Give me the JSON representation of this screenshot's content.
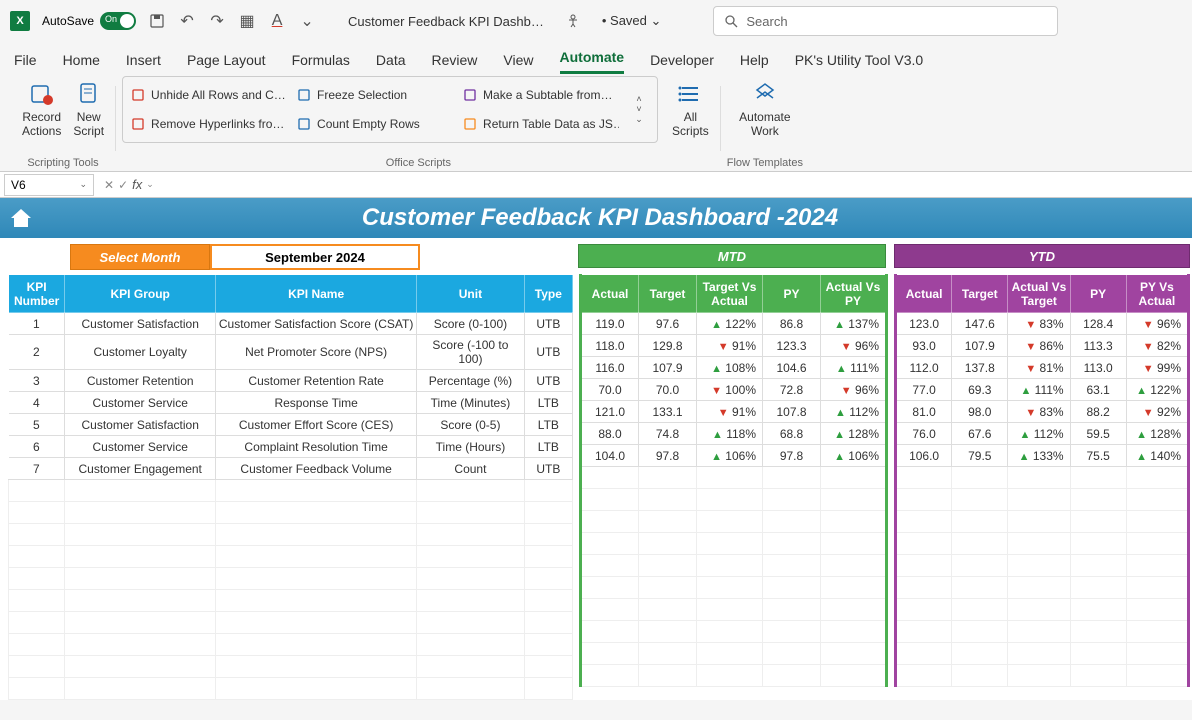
{
  "titlebar": {
    "autosave_label": "AutoSave",
    "toggle_text": "On",
    "doc_title": "Customer Feedback KPI Dashb…",
    "saved_text": "• Saved ⌄",
    "search_placeholder": "Search"
  },
  "tabs": [
    "File",
    "Home",
    "Insert",
    "Page Layout",
    "Formulas",
    "Data",
    "Review",
    "View",
    "Automate",
    "Developer",
    "Help",
    "PK's Utility Tool V3.0"
  ],
  "active_tab": "Automate",
  "ribbon": {
    "record_actions": "Record\nActions",
    "new_script": "New\nScript",
    "group1_label": "Scripting Tools",
    "scripts": [
      "Unhide All Rows and C…",
      "Freeze Selection",
      "Make a Subtable from…",
      "Remove Hyperlinks fro…",
      "Count Empty Rows",
      "Return Table Data as JS…"
    ],
    "all_scripts": "All\nScripts",
    "group2_label": "Office Scripts",
    "automate_work": "Automate\nWork",
    "group3_label": "Flow Templates"
  },
  "formula": {
    "namebox": "V6"
  },
  "dashboard": {
    "title": "Customer Feedback KPI Dashboard -2024",
    "select_month_label": "Select Month",
    "select_month_value": "September 2024",
    "mtd_label": "MTD",
    "ytd_label": "YTD"
  },
  "left_headers": [
    "KPI Number",
    "KPI Group",
    "KPI Name",
    "Unit",
    "Type"
  ],
  "mtd_headers": [
    "Actual",
    "Target",
    "Target Vs Actual",
    "PY",
    "Actual Vs PY"
  ],
  "ytd_headers": [
    "Actual",
    "Target",
    "Actual Vs Target",
    "PY",
    "PY Vs Actual"
  ],
  "rows": [
    {
      "n": "1",
      "group": "Customer Satisfaction",
      "name": "Customer Satisfaction Score (CSAT)",
      "unit": "Score (0-100)",
      "type": "UTB",
      "mtd": {
        "a": "119.0",
        "t": "97.6",
        "tva": "122%",
        "tva_dir": "up",
        "py": "86.8",
        "avp": "137%",
        "avp_dir": "up"
      },
      "ytd": {
        "a": "123.0",
        "t": "147.6",
        "avt": "83%",
        "avt_dir": "down",
        "py": "128.4",
        "pva": "96%",
        "pva_dir": "down"
      }
    },
    {
      "n": "2",
      "group": "Customer Loyalty",
      "name": "Net Promoter Score (NPS)",
      "unit": "Score (-100 to 100)",
      "type": "UTB",
      "mtd": {
        "a": "118.0",
        "t": "129.8",
        "tva": "91%",
        "tva_dir": "down",
        "py": "123.3",
        "avp": "96%",
        "avp_dir": "down"
      },
      "ytd": {
        "a": "93.0",
        "t": "107.9",
        "avt": "86%",
        "avt_dir": "down",
        "py": "113.3",
        "pva": "82%",
        "pva_dir": "down"
      }
    },
    {
      "n": "3",
      "group": "Customer Retention",
      "name": "Customer Retention Rate",
      "unit": "Percentage (%)",
      "type": "UTB",
      "mtd": {
        "a": "116.0",
        "t": "107.9",
        "tva": "108%",
        "tva_dir": "up",
        "py": "104.6",
        "avp": "111%",
        "avp_dir": "up"
      },
      "ytd": {
        "a": "112.0",
        "t": "137.8",
        "avt": "81%",
        "avt_dir": "down",
        "py": "113.0",
        "pva": "99%",
        "pva_dir": "down"
      }
    },
    {
      "n": "4",
      "group": "Customer Service",
      "name": "Response Time",
      "unit": "Time (Minutes)",
      "type": "LTB",
      "mtd": {
        "a": "70.0",
        "t": "70.0",
        "tva": "100%",
        "tva_dir": "down",
        "py": "72.8",
        "avp": "96%",
        "avp_dir": "down"
      },
      "ytd": {
        "a": "77.0",
        "t": "69.3",
        "avt": "111%",
        "avt_dir": "up",
        "py": "63.1",
        "pva": "122%",
        "pva_dir": "up"
      }
    },
    {
      "n": "5",
      "group": "Customer Satisfaction",
      "name": "Customer Effort Score (CES)",
      "unit": "Score (0-5)",
      "type": "LTB",
      "mtd": {
        "a": "121.0",
        "t": "133.1",
        "tva": "91%",
        "tva_dir": "down",
        "py": "107.8",
        "avp": "112%",
        "avp_dir": "up"
      },
      "ytd": {
        "a": "81.0",
        "t": "98.0",
        "avt": "83%",
        "avt_dir": "down",
        "py": "88.2",
        "pva": "92%",
        "pva_dir": "down"
      }
    },
    {
      "n": "6",
      "group": "Customer Service",
      "name": "Complaint Resolution Time",
      "unit": "Time (Hours)",
      "type": "LTB",
      "mtd": {
        "a": "88.0",
        "t": "74.8",
        "tva": "118%",
        "tva_dir": "up",
        "py": "68.8",
        "avp": "128%",
        "avp_dir": "up"
      },
      "ytd": {
        "a": "76.0",
        "t": "67.6",
        "avt": "112%",
        "avt_dir": "up",
        "py": "59.5",
        "pva": "128%",
        "pva_dir": "up"
      }
    },
    {
      "n": "7",
      "group": "Customer Engagement",
      "name": "Customer Feedback Volume",
      "unit": "Count",
      "type": "UTB",
      "mtd": {
        "a": "104.0",
        "t": "97.8",
        "tva": "106%",
        "tva_dir": "up",
        "py": "97.8",
        "avp": "106%",
        "avp_dir": "up"
      },
      "ytd": {
        "a": "106.0",
        "t": "79.5",
        "avt": "133%",
        "avt_dir": "up",
        "py": "75.5",
        "pva": "140%",
        "pva_dir": "up"
      }
    }
  ],
  "colors": {
    "up": "#2e9e3f",
    "down": "#d43a2a",
    "header_blue": "#1ba8e0",
    "mtd_green": "#4caf50",
    "ytd_purple": "#a044a0",
    "orange": "#f68b1f",
    "banner": "#3a92c1"
  },
  "col_widths": {
    "t1": [
      56,
      150,
      200,
      107,
      48
    ],
    "t2": [
      58,
      58,
      66,
      58,
      66
    ],
    "t3": [
      56,
      56,
      62,
      56,
      62
    ]
  }
}
